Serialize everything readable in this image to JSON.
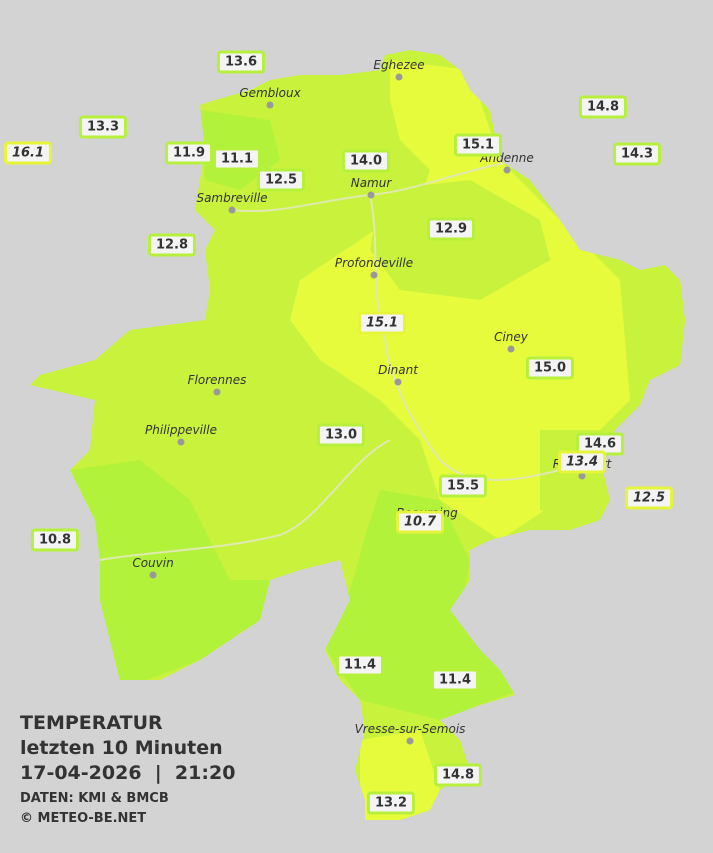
{
  "legend": {
    "title": "TEMPERATUR",
    "subtitle": "letzten 10 Minuten",
    "datetime": "17-04-2026  |  21:20",
    "source": "DATEN: KMI & BMCB",
    "copyright": "© METEO-BE.NET"
  },
  "towns": [
    {
      "name": "Eghezee"
    },
    {
      "name": "Gembloux"
    },
    {
      "name": "Andenne"
    },
    {
      "name": "Namur"
    },
    {
      "name": "Sambreville"
    },
    {
      "name": "Profondeville"
    },
    {
      "name": "Ciney"
    },
    {
      "name": "Dinant"
    },
    {
      "name": "Florennes"
    },
    {
      "name": "Philippeville"
    },
    {
      "name": "Rochefort"
    },
    {
      "name": "Beauraing"
    },
    {
      "name": "Couvin"
    },
    {
      "name": "Vresse-sur-Semois"
    }
  ],
  "stations": [
    {
      "value": "13.6"
    },
    {
      "value": "13.3"
    },
    {
      "value": "16.1",
      "style": "italic"
    },
    {
      "value": "11.9"
    },
    {
      "value": "11.1"
    },
    {
      "value": "12.5"
    },
    {
      "value": "14.0"
    },
    {
      "value": "15.1"
    },
    {
      "value": "14.8"
    },
    {
      "value": "14.3"
    },
    {
      "value": "12.8"
    },
    {
      "value": "12.9"
    },
    {
      "value": "15.1",
      "style": "italic"
    },
    {
      "value": "15.0"
    },
    {
      "value": "13.0"
    },
    {
      "value": "14.6"
    },
    {
      "value": "13.4",
      "style": "italic"
    },
    {
      "value": "12.5",
      "style": "italic"
    },
    {
      "value": "15.5"
    },
    {
      "value": "10.7",
      "style": "italic"
    },
    {
      "value": "10.8"
    },
    {
      "value": "11.4"
    },
    {
      "value": "11.4"
    },
    {
      "value": "14.8"
    },
    {
      "value": "13.2"
    }
  ]
}
